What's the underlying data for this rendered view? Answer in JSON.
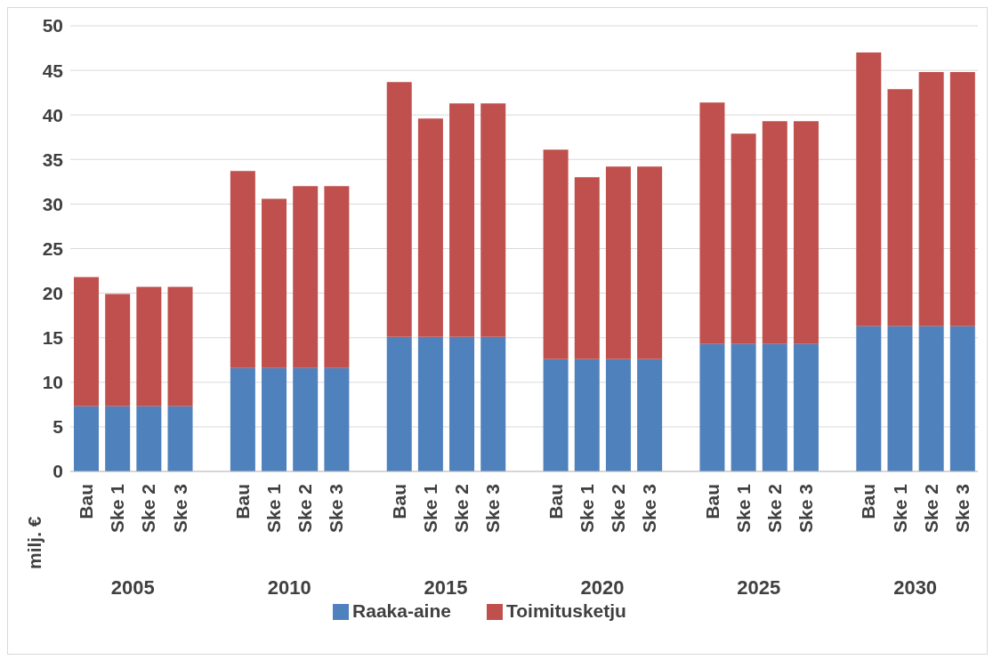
{
  "chart_data": {
    "type": "bar",
    "stacked": true,
    "ylabel": "milj. €",
    "categories": [
      "Bau",
      "Ske 1",
      "Ske 2",
      "Ske 3",
      null,
      "Bau",
      "Ske 1",
      "Ske 2",
      "Ske 3",
      null,
      "Bau",
      "Ske 1",
      "Ske 2",
      "Ske 3",
      null,
      "Bau",
      "Ske 1",
      "Ske 2",
      "Ske 3",
      null,
      "Bau",
      "Ske 1",
      "Ske 2",
      "Ske 3",
      null,
      "Bau",
      "Ske 1",
      "Ske 2",
      "Ske 3"
    ],
    "series": [
      {
        "name": "Raaka-aine",
        "color": "#4f81bd",
        "values": [
          7.3,
          7.3,
          7.3,
          7.3,
          null,
          11.6,
          11.6,
          11.6,
          11.6,
          null,
          15.1,
          15.1,
          15.1,
          15.1,
          null,
          12.6,
          12.6,
          12.6,
          12.6,
          null,
          14.3,
          14.3,
          14.3,
          14.3,
          null,
          16.3,
          16.3,
          16.3,
          16.3
        ]
      },
      {
        "name": "Toimitusketju",
        "color": "#c0504d",
        "values": [
          14.5,
          12.6,
          13.4,
          13.4,
          null,
          22.1,
          19.0,
          20.4,
          20.4,
          null,
          28.6,
          24.5,
          26.2,
          26.2,
          null,
          23.5,
          20.4,
          21.6,
          21.6,
          null,
          27.1,
          23.6,
          25.0,
          25.0,
          null,
          30.7,
          26.6,
          28.5,
          28.5
        ]
      }
    ],
    "annotations": [
      "2005",
      "2010",
      "2015",
      "2020",
      "2025",
      "2030"
    ],
    "ylim": [
      0,
      50
    ],
    "yticks": [
      0,
      5,
      10,
      15,
      20,
      25,
      30,
      35,
      40,
      45,
      50
    ],
    "grid": "y",
    "legend": "bottom"
  }
}
